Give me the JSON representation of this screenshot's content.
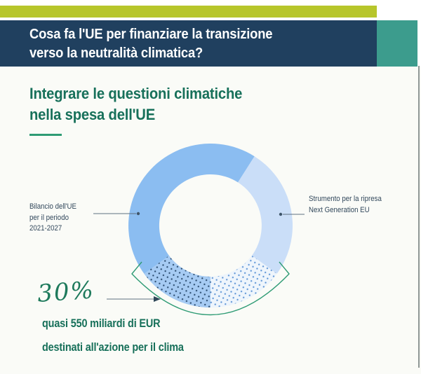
{
  "page": {
    "background": "#fafbf7",
    "right_edge_line_color": "#6b7574"
  },
  "header": {
    "kicker_bar_color": "#b7c62b",
    "banner_color": "#20405f",
    "accent_block_color": "#3c9c8d",
    "title_color": "#ffffff",
    "title_lines": [
      "Cosa fa l'UE per finanziare la transizione",
      "verso la neutralità climatica?"
    ]
  },
  "section": {
    "heading_lines": [
      "Integrare le questioni climatiche",
      "nella spesa dell'UE"
    ],
    "heading_color": "#17705a",
    "underline_color": "#2e9b74"
  },
  "chart_data": {
    "type": "pie",
    "subtype": "donut",
    "title": "Integrare le questioni climatiche nella spesa dell'UE",
    "legend_position": "side-callouts",
    "segments": [
      {
        "label": "Bilancio dell'UE per il periodo 2021-2027",
        "share_pct": 59,
        "color": "#8bbdf1"
      },
      {
        "label": "Strumento per la ripresa Next Generation EU",
        "share_pct": 41,
        "color": "#cadef8"
      }
    ],
    "highlight": {
      "share_pct": 30,
      "value_label": "30%",
      "description": "quasi 550 miliardi di EUR destinati all'azione per il clima",
      "pattern": "dotted",
      "centered_on": "bottom",
      "dotted_left_bg": "#a6cbf3",
      "dotted_left_dot": "#2a4b6e",
      "dotted_right_bg": "#eef5fc",
      "dotted_right_dot": "#5d94d6",
      "bracket_color": "#2e9b74"
    }
  },
  "labels": {
    "color": "#32485c",
    "left_lines": [
      "Bilancio dell'UE",
      "per il periodo",
      "2021-2027"
    ],
    "right_lines": [
      "Strumento per la ripresa",
      "Next Generation EU"
    ]
  },
  "callout": {
    "value": "30%",
    "value_color": "#1e7a5c",
    "line1": "quasi 550 miliardi di EUR",
    "line2": "destinati all'azione per il clima",
    "text_color": "#17705a"
  }
}
